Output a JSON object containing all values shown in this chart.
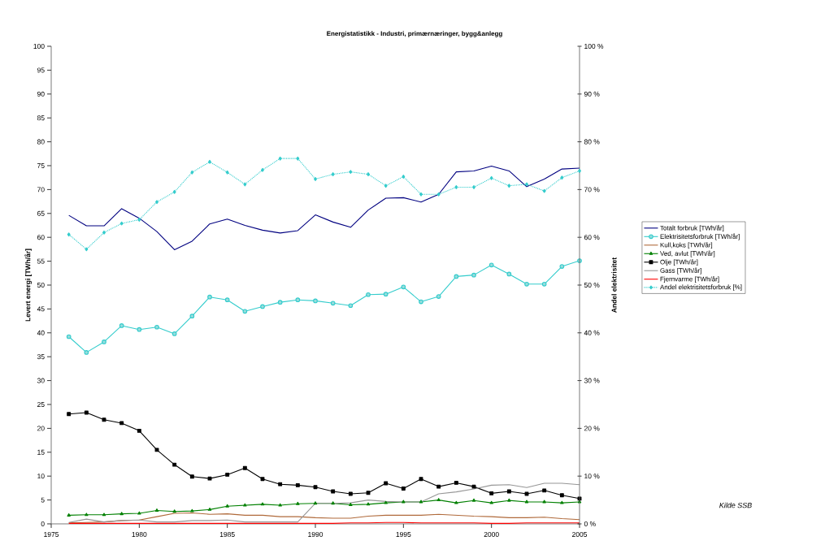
{
  "chart_data": {
    "type": "line",
    "title": "Energistatistikk - Industri, primærnæringer, bygg&anlegg",
    "ylabel": "Levert energi [TWh/år]",
    "y2label": "Andel elektrisitet",
    "annotations": [
      "Kilde SSB"
    ],
    "x": [
      1976,
      1977,
      1978,
      1979,
      1980,
      1981,
      1982,
      1983,
      1984,
      1985,
      1986,
      1987,
      1988,
      1989,
      1990,
      1991,
      1992,
      1993,
      1994,
      1995,
      1996,
      1997,
      1998,
      1999,
      2000,
      2001,
      2002,
      2003,
      2004,
      2005
    ],
    "xlim": [
      1975,
      2005
    ],
    "xticks": [
      1975,
      1980,
      1985,
      1990,
      1995,
      2000,
      2005
    ],
    "ylim": [
      0,
      100
    ],
    "yticks": [
      0,
      5,
      10,
      15,
      20,
      25,
      30,
      35,
      40,
      45,
      50,
      55,
      60,
      65,
      70,
      75,
      80,
      85,
      90,
      95,
      100
    ],
    "y2lim": [
      0,
      100
    ],
    "y2ticks": [
      {
        "value": 0,
        "label": "0 %"
      },
      {
        "value": 10,
        "label": "10 %"
      },
      {
        "value": 20,
        "label": "20 %"
      },
      {
        "value": 30,
        "label": "30 %"
      },
      {
        "value": 40,
        "label": "40 %"
      },
      {
        "value": 50,
        "label": "50 %"
      },
      {
        "value": 60,
        "label": "60 %"
      },
      {
        "value": 70,
        "label": "70 %"
      },
      {
        "value": 80,
        "label": "80 %"
      },
      {
        "value": 90,
        "label": "90 %"
      },
      {
        "value": 100,
        "label": "100 %"
      }
    ],
    "grid": false,
    "legend": "right",
    "series": [
      {
        "name": "Totalt forbruk [TWh/år]",
        "color": "#000080",
        "marker": "none",
        "line_style": "solid",
        "values": [
          64.6,
          62.4,
          62.4,
          66.0,
          64.0,
          61.2,
          57.4,
          59.2,
          62.8,
          63.8,
          62.5,
          61.5,
          60.9,
          61.4,
          64.7,
          63.2,
          62.1,
          65.7,
          68.2,
          68.3,
          67.4,
          69.0,
          73.7,
          73.9,
          74.9,
          73.9,
          70.6,
          72.2,
          74.3,
          74.5
        ]
      },
      {
        "name": "Elektrisitetsforbruk [TWh/år]",
        "color": "#33cccc",
        "marker": "circle",
        "line_style": "solid",
        "values": [
          39.2,
          35.9,
          38.1,
          41.5,
          40.7,
          41.2,
          39.8,
          43.5,
          47.5,
          46.9,
          44.5,
          45.5,
          46.4,
          46.9,
          46.7,
          46.2,
          45.7,
          48.0,
          48.1,
          49.6,
          46.5,
          47.6,
          51.8,
          52.1,
          54.2,
          52.3,
          50.2,
          50.2,
          53.9,
          55.1
        ]
      },
      {
        "name": "Kull,koks [TWh/år]",
        "color": "#b06a3b",
        "marker": "none",
        "line_style": "solid",
        "values": [
          0.2,
          0.3,
          0.4,
          0.7,
          0.8,
          1.5,
          2.2,
          2.3,
          2.0,
          2.1,
          1.8,
          1.8,
          1.5,
          1.5,
          1.3,
          1.2,
          1.2,
          1.6,
          1.8,
          1.8,
          1.8,
          2.0,
          1.8,
          1.6,
          1.5,
          1.3,
          1.3,
          1.4,
          1.1,
          0.9
        ]
      },
      {
        "name": "Ved, avlut [TWh/år]",
        "color": "#008000",
        "marker": "triangle",
        "line_style": "solid",
        "values": [
          1.8,
          1.9,
          1.9,
          2.1,
          2.2,
          2.8,
          2.6,
          2.7,
          3.0,
          3.7,
          3.9,
          4.1,
          3.9,
          4.2,
          4.3,
          4.3,
          4.0,
          4.1,
          4.4,
          4.6,
          4.6,
          5.0,
          4.4,
          4.9,
          4.4,
          4.9,
          4.6,
          4.6,
          4.4,
          4.6
        ]
      },
      {
        "name": "Olje [TWh/år]",
        "color": "#000000",
        "marker": "square",
        "line_style": "solid",
        "values": [
          23.0,
          23.3,
          21.8,
          21.1,
          19.5,
          15.5,
          12.4,
          9.9,
          9.5,
          10.3,
          11.7,
          9.4,
          8.3,
          8.1,
          7.7,
          6.8,
          6.3,
          6.5,
          8.5,
          7.4,
          9.4,
          7.8,
          8.6,
          7.8,
          6.4,
          6.8,
          6.3,
          7.0,
          6.0,
          5.3
        ]
      },
      {
        "name": "Gass [TWh/år]",
        "color": "#969696",
        "marker": "none",
        "line_style": "solid",
        "values": [
          0.3,
          1.0,
          0.4,
          0.7,
          0.8,
          0.4,
          0.4,
          0.7,
          0.7,
          0.8,
          0.4,
          0.4,
          0.4,
          0.4,
          4.3,
          4.3,
          4.4,
          5.0,
          4.7,
          4.6,
          4.6,
          6.3,
          6.7,
          7.3,
          8.1,
          8.2,
          7.6,
          8.5,
          8.5,
          8.2
        ]
      },
      {
        "name": "Fjernvarme [TWh/år]",
        "color": "#ff0000",
        "marker": "none",
        "line_style": "solid",
        "values": [
          0.1,
          0.1,
          0.1,
          0.1,
          0.1,
          0.1,
          0.1,
          0.1,
          0.1,
          0.1,
          0.1,
          0.1,
          0.1,
          0.1,
          0.1,
          0.1,
          0.2,
          0.2,
          0.3,
          0.3,
          0.2,
          0.2,
          0.2,
          0.2,
          0.1,
          0.1,
          0.2,
          0.2,
          0.2,
          0.2
        ]
      },
      {
        "name": "Andel elektrisitetsforbruk [%]",
        "color": "#33cccc",
        "marker": "diamond",
        "line_style": "dotted",
        "axis": "y2",
        "values": [
          60.6,
          57.5,
          61.0,
          62.9,
          63.7,
          67.4,
          69.5,
          73.6,
          75.8,
          73.6,
          71.1,
          74.1,
          76.5,
          76.5,
          72.2,
          73.2,
          73.7,
          73.2,
          70.8,
          72.7,
          69.0,
          69.0,
          70.5,
          70.5,
          72.4,
          70.8,
          71.1,
          69.7,
          72.5,
          73.9
        ]
      }
    ]
  }
}
